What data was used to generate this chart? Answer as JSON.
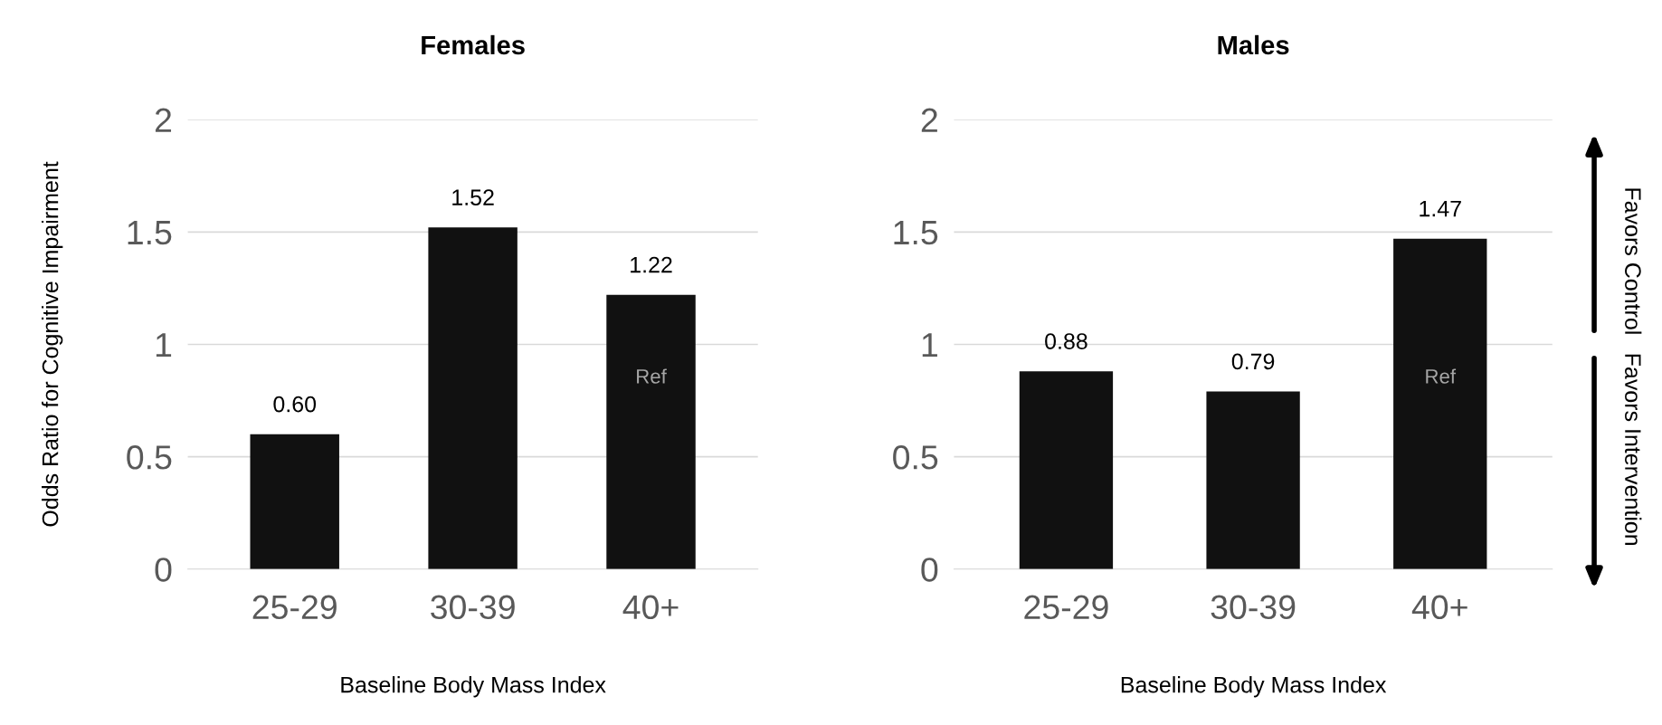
{
  "chart_data": [
    {
      "type": "bar",
      "title": "Females",
      "xlabel": "Baseline Body Mass Index",
      "ylabel": "Odds Ratio for Cognitive Impairment",
      "categories": [
        "25-29",
        "30-39",
        "40+"
      ],
      "values": [
        0.6,
        1.52,
        1.22
      ],
      "value_labels": [
        "0.60",
        "1.52",
        "1.22"
      ],
      "color": "#111111",
      "ylim": [
        0,
        2
      ],
      "yticks": [
        0,
        0.5,
        1,
        1.5,
        2
      ],
      "grid": "y",
      "annotations": [
        "Ref"
      ]
    },
    {
      "type": "bar",
      "title": "Males",
      "xlabel": "Baseline Body Mass Index",
      "categories": [
        "25-29",
        "30-39",
        "40+"
      ],
      "values": [
        0.88,
        0.79,
        1.47
      ],
      "value_labels": [
        "0.88",
        "0.79",
        "1.47"
      ],
      "color": "#111111",
      "ylim": [
        0,
        2
      ],
      "yticks": [
        0,
        0.5,
        1,
        1.5,
        2
      ],
      "grid": "y",
      "annotations": [
        "Ref",
        "Favors Control",
        "Favors Intervention"
      ]
    }
  ]
}
